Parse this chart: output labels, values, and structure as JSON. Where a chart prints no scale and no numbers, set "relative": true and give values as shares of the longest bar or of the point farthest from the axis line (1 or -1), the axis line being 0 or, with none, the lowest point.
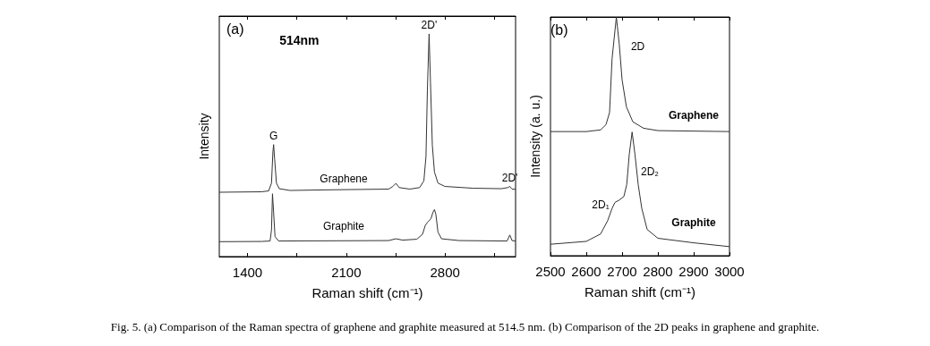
{
  "chart_data": [
    {
      "type": "line",
      "title": "(a)",
      "subtitle": "514nm",
      "xlabel": "Raman shift (cm⁻¹)",
      "ylabel": "Intensity",
      "relative": true,
      "tick_labels": "x",
      "xlim": [
        1200,
        3300
      ],
      "xticks": [
        {
          "value": 1400,
          "label": "1400"
        },
        {
          "value": 1750,
          "label": null
        },
        {
          "value": 2100,
          "label": "2100"
        },
        {
          "value": 2450,
          "label": null
        },
        {
          "value": 2800,
          "label": "2800"
        },
        {
          "value": 3150,
          "label": null
        }
      ],
      "series": [
        {
          "name": "Graphene",
          "color": "#333333",
          "x": [
            1200,
            1500,
            1550,
            1570,
            1580,
            1585,
            1592,
            1605,
            1625,
            1700,
            2000,
            2400,
            2430,
            2452,
            2475,
            2550,
            2620,
            2650,
            2665,
            2675,
            2687,
            2697,
            2710,
            2725,
            2750,
            2800,
            3000,
            3200,
            3245,
            3259,
            3275,
            3300
          ],
          "values": [
            0.289,
            0.291,
            0.295,
            0.33,
            0.47,
            0.503,
            0.44,
            0.33,
            0.305,
            0.297,
            0.3,
            0.303,
            0.315,
            0.329,
            0.31,
            0.303,
            0.31,
            0.34,
            0.45,
            0.75,
            1.0,
            0.78,
            0.5,
            0.38,
            0.33,
            0.315,
            0.307,
            0.305,
            0.31,
            0.315,
            0.303,
            0.302
          ]
        },
        {
          "name": "Graphite",
          "color": "#333333",
          "x": [
            1200,
            1500,
            1560,
            1570,
            1577,
            1585,
            1595,
            1620,
            2400,
            2452,
            2500,
            2600,
            2640,
            2660,
            2676,
            2700,
            2715,
            2725,
            2735,
            2750,
            2775,
            2900,
            3240,
            3259,
            3275,
            3300
          ],
          "values": [
            0.067,
            0.068,
            0.07,
            0.12,
            0.282,
            0.2,
            0.09,
            0.07,
            0.072,
            0.08,
            0.074,
            0.078,
            0.1,
            0.14,
            0.154,
            0.17,
            0.2,
            0.211,
            0.19,
            0.11,
            0.08,
            0.072,
            0.07,
            0.097,
            0.072,
            0.07
          ]
        }
      ],
      "annotations": [
        {
          "text": "G",
          "x": 1585,
          "y": 0.503
        },
        {
          "text": "2D'",
          "x": 2687,
          "y": 1.0
        },
        {
          "text": "2D'",
          "x": 3259,
          "y": 0.315
        }
      ]
    },
    {
      "type": "line",
      "title": "(b)",
      "xlabel": "Raman shift (cm⁻¹)",
      "ylabel": "Intensity (a. u.)",
      "relative": true,
      "tick_labels": "x",
      "xlim": [
        2500,
        3000
      ],
      "xticks": [
        2500,
        2600,
        2700,
        2800,
        2900,
        3000
      ],
      "series": [
        {
          "name": "Graphene",
          "color": "#333333",
          "x": [
            2500,
            2600,
            2640,
            2655,
            2665,
            2672,
            2684,
            2692,
            2700,
            2712,
            2730,
            2760,
            2800,
            3000
          ],
          "values": [
            0.52,
            0.52,
            0.527,
            0.549,
            0.6,
            0.825,
            1.0,
            0.887,
            0.737,
            0.624,
            0.561,
            0.534,
            0.524,
            0.52
          ]
        },
        {
          "name": "Graphite",
          "color": "#333333",
          "x": [
            2500,
            2600,
            2640,
            2660,
            2672,
            2680,
            2692,
            2705,
            2713,
            2720,
            2728,
            2736,
            2745,
            2755,
            2770,
            2800,
            2900,
            3000
          ],
          "values": [
            0.048,
            0.06,
            0.091,
            0.148,
            0.198,
            0.223,
            0.233,
            0.248,
            0.298,
            0.424,
            0.518,
            0.424,
            0.298,
            0.198,
            0.11,
            0.073,
            0.054,
            0.038
          ]
        }
      ],
      "annotations": [
        {
          "text": "2D",
          "x": 2684,
          "y": 1.0
        },
        {
          "text": "2D₂",
          "x": 2740,
          "y": 0.368
        },
        {
          "text": "2D₁",
          "x": 2680,
          "y": 0.223
        },
        "Fig. 5.  (a) Comparison of the Raman spectra of graphene and graphite measured at 514.5 nm. (b) Comparison of the 2D peaks in graphene and graphite."
      ]
    }
  ]
}
